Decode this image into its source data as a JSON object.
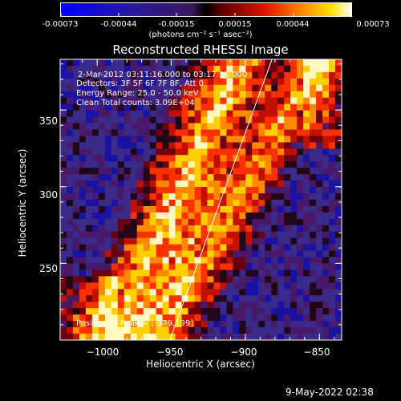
{
  "colorbar": {
    "tick_labels": [
      "-0.00073",
      "-0.00044",
      "-0.00015",
      "0.00015",
      "0.00044",
      "0.00073"
    ],
    "unit_label": "(photons cm⁻² s⁻¹ asec⁻²)"
  },
  "title": "Reconstructed RHESSI Image",
  "annotations": {
    "time": "2-Mar-2012 03:11:16.000 to 03:17:16.000",
    "detectors": "Detectors: 3F 5F 6F 7F 8F, Att 0",
    "energy": "Energy Range: 25.0 - 50.0 keV",
    "clean": "Clean     Total counts: 3.09E+04",
    "peak": "Position of Peak = [-979,199]"
  },
  "footer_date": "9-May-2022 02:38",
  "colors": {
    "background": "#000000",
    "limb": "#ffffff"
  },
  "chart_data": {
    "type": "heatmap",
    "title": "Reconstructed RHESSI Image",
    "xlabel": "Heliocentric X (arcsec)",
    "ylabel": "Heliocentric Y (arcsec)",
    "xlim": [
      -1025,
      -835
    ],
    "ylim": [
      200,
      383
    ],
    "x_ticks": [
      -1000,
      -950,
      -900,
      -850
    ],
    "y_ticks": [
      250,
      300,
      350
    ],
    "x_tick_labels": [
      "−1000",
      "−950",
      "−900",
      "−850"
    ],
    "y_tick_labels": [
      "250",
      "300",
      "350"
    ],
    "color_range": [
      -0.00073,
      0.00073
    ],
    "colormap": "blue-purple-red-yellow-white",
    "limb_line": [
      [
        -951,
        200
      ],
      [
        -882,
        383
      ]
    ],
    "peak_position": [
      -979,
      199
    ]
  }
}
